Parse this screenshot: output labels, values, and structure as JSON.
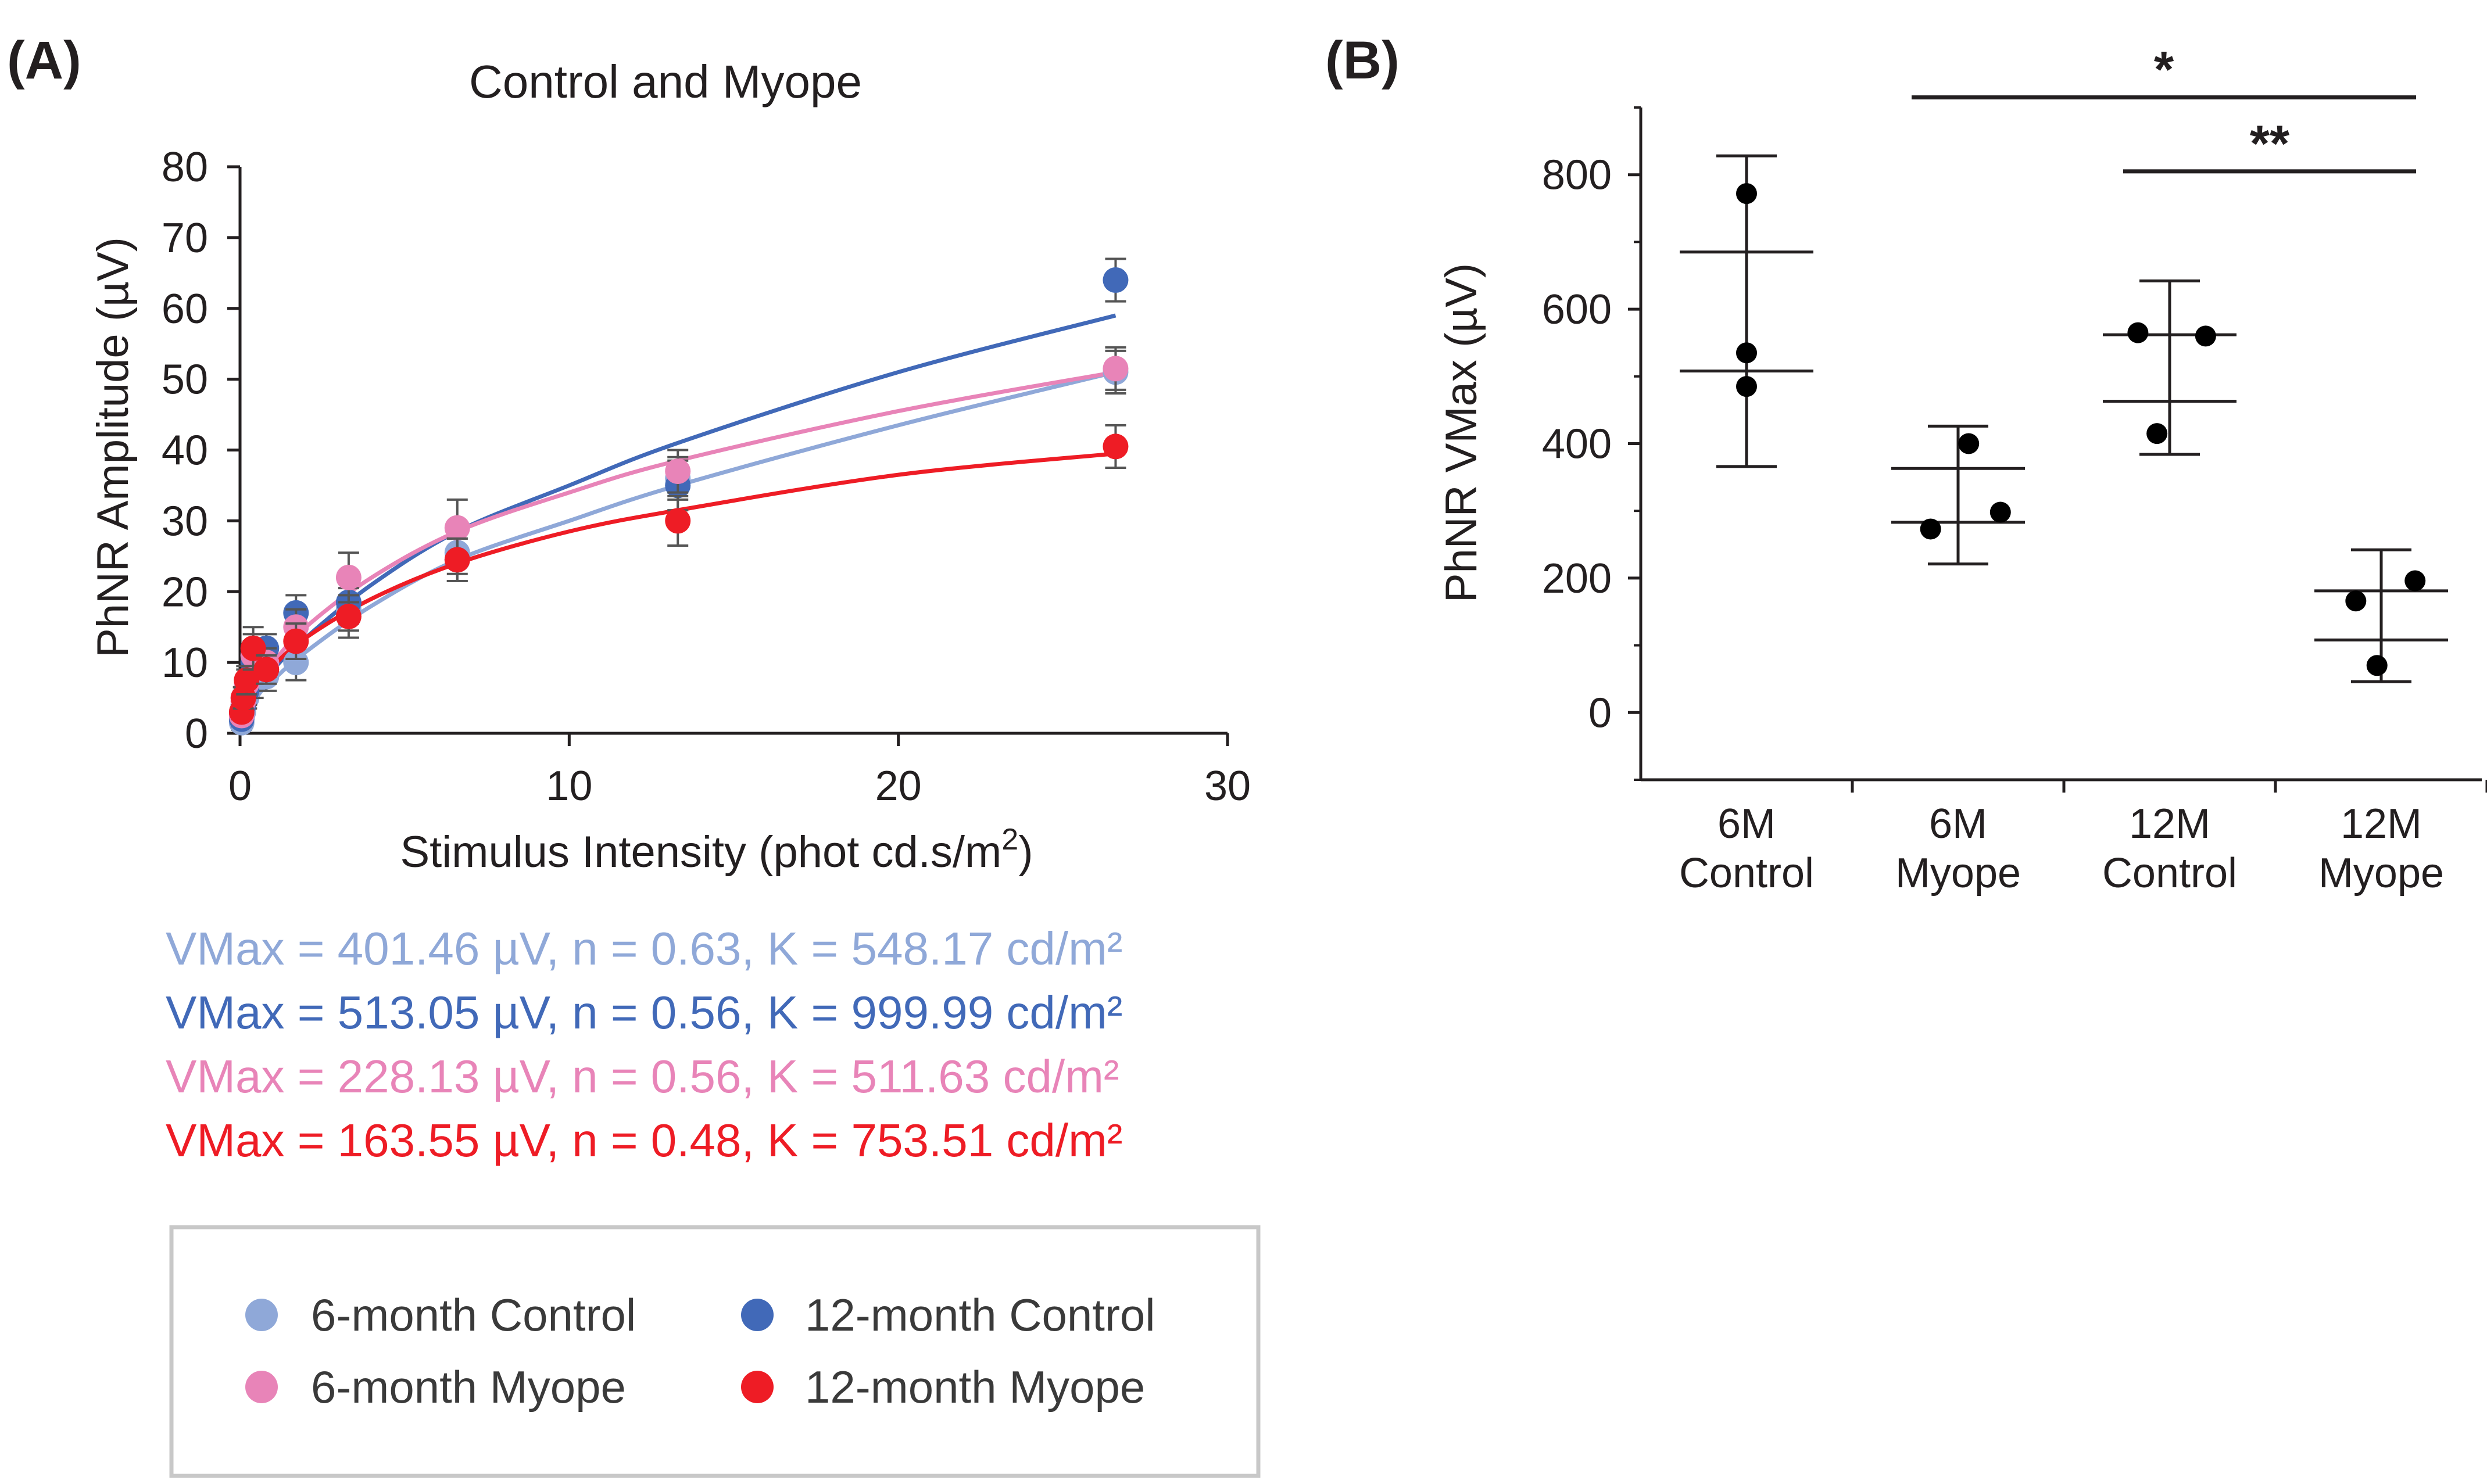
{
  "panel_a_label": "(A)",
  "panel_b_label": "(B)",
  "colors": {
    "ctrl6": "#8fa8d8",
    "ctrl12": "#4169b8",
    "myope6": "#e884b8",
    "myope12": "#ee1c25",
    "axis": "#231f20",
    "errorbar": "#555555",
    "legend_border": "#c8c8c8"
  },
  "fit_params": [
    {
      "text": "VMax = 401.46 µV, n = 0.63, K = 548.17 cd/m²",
      "color": "#8fa8d8"
    },
    {
      "text": "VMax = 513.05 µV, n = 0.56, K = 999.99 cd/m²",
      "color": "#4169b8"
    },
    {
      "text": "VMax = 228.13 µV, n = 0.56, K = 511.63 cd/m²",
      "color": "#e884b8"
    },
    {
      "text": "VMax = 163.55 µV, n = 0.48, K = 753.51 cd/m²",
      "color": "#ee1c25"
    }
  ],
  "legend": [
    {
      "label": "6-month Control",
      "color": "#8fa8d8"
    },
    {
      "label": "12-month Control",
      "color": "#4169b8"
    },
    {
      "label": "6-month Myope",
      "color": "#e884b8"
    },
    {
      "label": "12-month Myope",
      "color": "#ee1c25"
    }
  ],
  "chart_data": [
    {
      "type": "scatter",
      "title": "Control and Myope",
      "xlabel": "Stimulus Intensity (phot cd.s/m",
      "xlabel_sup": "2",
      "xlabel_end": ")",
      "ylabel": "PhNR Amplitude (µV)",
      "xlim": [
        0,
        30
      ],
      "ylim": [
        0,
        80
      ],
      "xticks": [
        0,
        10,
        20,
        30
      ],
      "yticks": [
        0,
        10,
        20,
        30,
        40,
        50,
        60,
        70,
        80
      ],
      "x": [
        0.05,
        0.1,
        0.2,
        0.4,
        0.8,
        1.7,
        3.3,
        6.6,
        13.3,
        26.6
      ],
      "series": [
        {
          "name": "6-month Control",
          "color": "#8fa8d8",
          "values": [
            1.5,
            3,
            5,
            7,
            8,
            10,
            17.5,
            25.5,
            36,
            51
          ],
          "errors": [
            1,
            1,
            1.5,
            2,
            2,
            2.5,
            3,
            3,
            3,
            3
          ]
        },
        {
          "name": "12-month Control",
          "color": "#4169b8",
          "values": [
            2,
            4,
            6,
            10,
            12,
            17,
            18.5,
            24.5,
            35,
            64
          ],
          "errors": [
            1,
            1.5,
            2,
            3,
            2,
            2.5,
            3,
            3,
            3.5,
            3
          ]
        },
        {
          "name": "6-month Myope",
          "color": "#e884b8",
          "values": [
            2.5,
            4.5,
            7,
            11,
            10,
            15,
            22,
            29,
            37,
            51.5
          ],
          "errors": [
            1,
            1.5,
            2,
            3,
            2,
            2.5,
            3.5,
            4,
            3,
            3
          ]
        },
        {
          "name": "12-month Myope",
          "color": "#ee1c25",
          "values": [
            3,
            5,
            7.5,
            12,
            9,
            13,
            16.5,
            24.5,
            30,
            40.5
          ],
          "errors": [
            1,
            1.5,
            2,
            3,
            2,
            2.5,
            3,
            3,
            3.5,
            3
          ]
        }
      ],
      "fit_curves": [
        {
          "name": "6-month Control",
          "color": "#8fa8d8",
          "points": [
            [
              0,
              0
            ],
            [
              0.5,
              5
            ],
            [
              1,
              7.5
            ],
            [
              2,
              11.5
            ],
            [
              4,
              18
            ],
            [
              6.6,
              24.5
            ],
            [
              10,
              30
            ],
            [
              13.3,
              35
            ],
            [
              20,
              43.5
            ],
            [
              26.6,
              51
            ]
          ]
        },
        {
          "name": "12-month Control",
          "color": "#4169b8",
          "points": [
            [
              0,
              0
            ],
            [
              0.5,
              6
            ],
            [
              1,
              9
            ],
            [
              2,
              13.5
            ],
            [
              4,
              21
            ],
            [
              6.6,
              28.5
            ],
            [
              10,
              35
            ],
            [
              13.3,
              41
            ],
            [
              20,
              51
            ],
            [
              26.6,
              59
            ]
          ]
        },
        {
          "name": "6-month Myope",
          "color": "#e884b8",
          "points": [
            [
              0,
              0
            ],
            [
              0.5,
              7
            ],
            [
              1,
              10
            ],
            [
              2,
              15
            ],
            [
              4,
              22
            ],
            [
              6.6,
              28.5
            ],
            [
              10,
              34
            ],
            [
              13.3,
              38.5
            ],
            [
              20,
              45.5
            ],
            [
              26.6,
              51
            ]
          ]
        },
        {
          "name": "12-month Myope",
          "color": "#ee1c25",
          "points": [
            [
              0,
              0
            ],
            [
              0.5,
              7
            ],
            [
              1,
              9.5
            ],
            [
              2,
              13.5
            ],
            [
              4,
              19
            ],
            [
              6.6,
              24
            ],
            [
              10,
              28.5
            ],
            [
              13.3,
              31.5
            ],
            [
              20,
              36.5
            ],
            [
              26.6,
              39.5
            ]
          ]
        }
      ]
    },
    {
      "type": "scatter",
      "title": "",
      "xlabel": "",
      "ylabel": "PhNR VMax (µV)",
      "ylim": [
        -100,
        900
      ],
      "yticks": [
        0,
        200,
        400,
        600,
        800
      ],
      "categories": [
        {
          "line1": "6M",
          "line2": "Control"
        },
        {
          "line1": "6M",
          "line2": "Myope"
        },
        {
          "line1": "12M",
          "line2": "Control"
        },
        {
          "line1": "12M",
          "line2": "Myope"
        }
      ],
      "points": [
        [
          {
            "dx": 0,
            "y": 772
          },
          {
            "dx": 0,
            "y": 535
          },
          {
            "dx": 0,
            "y": 485
          }
        ],
        [
          {
            "dx": 0.05,
            "y": 400
          },
          {
            "dx": -0.13,
            "y": 273
          },
          {
            "dx": 0.2,
            "y": 298
          }
        ],
        [
          {
            "dx": -0.15,
            "y": 565
          },
          {
            "dx": 0.17,
            "y": 560
          },
          {
            "dx": -0.06,
            "y": 415
          }
        ],
        [
          {
            "dx": -0.12,
            "y": 166
          },
          {
            "dx": 0.16,
            "y": 196
          },
          {
            "dx": -0.02,
            "y": 70
          }
        ]
      ],
      "mean_sd": [
        {
          "upper": 828,
          "q_hi": 685,
          "q_lo": 508,
          "lower": 366
        },
        {
          "upper": 426,
          "q_hi": 363,
          "q_lo": 283,
          "lower": 221
        },
        {
          "upper": 642,
          "q_hi": 562,
          "q_lo": 463,
          "lower": 384
        },
        {
          "upper": 242,
          "q_hi": 181,
          "q_lo": 108,
          "lower": 46
        }
      ],
      "significance": [
        {
          "from": 1,
          "to": 3,
          "y": 915,
          "label": "*"
        },
        {
          "from": 2,
          "to": 3,
          "y": 805,
          "label": "**"
        }
      ]
    }
  ]
}
